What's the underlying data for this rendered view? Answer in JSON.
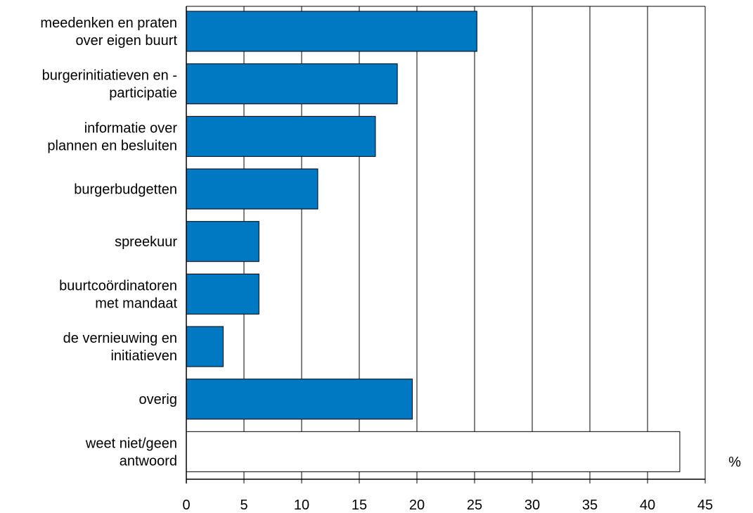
{
  "chart_data": {
    "type": "bar",
    "orientation": "horizontal",
    "title": "",
    "xlabel": "",
    "ylabel": "",
    "unit": "%",
    "xlim": [
      0,
      45
    ],
    "xticks": [
      0,
      5,
      10,
      15,
      20,
      25,
      30,
      35,
      40,
      45
    ],
    "grid": "vertical",
    "categories": [
      [
        "meedenken en praten",
        "over eigen buurt"
      ],
      [
        "burgerinitiatieven en -",
        "participatie"
      ],
      [
        "informatie over",
        "plannen en besluiten"
      ],
      [
        "burgerbudgetten"
      ],
      [
        "spreekuur"
      ],
      [
        "buurtcoördinatoren",
        "met mandaat"
      ],
      [
        "de vernieuwing en",
        "initiatieven"
      ],
      [
        "overig"
      ],
      [
        "weet niet/geen",
        "antwoord"
      ]
    ],
    "values": [
      25.2,
      18.3,
      16.4,
      11.4,
      6.3,
      6.3,
      3.2,
      19.6,
      42.8
    ],
    "bar_colors": [
      "#0079c2",
      "#0079c2",
      "#0079c2",
      "#0079c2",
      "#0079c2",
      "#0079c2",
      "#0079c2",
      "#0079c2",
      "#ffffff"
    ]
  }
}
